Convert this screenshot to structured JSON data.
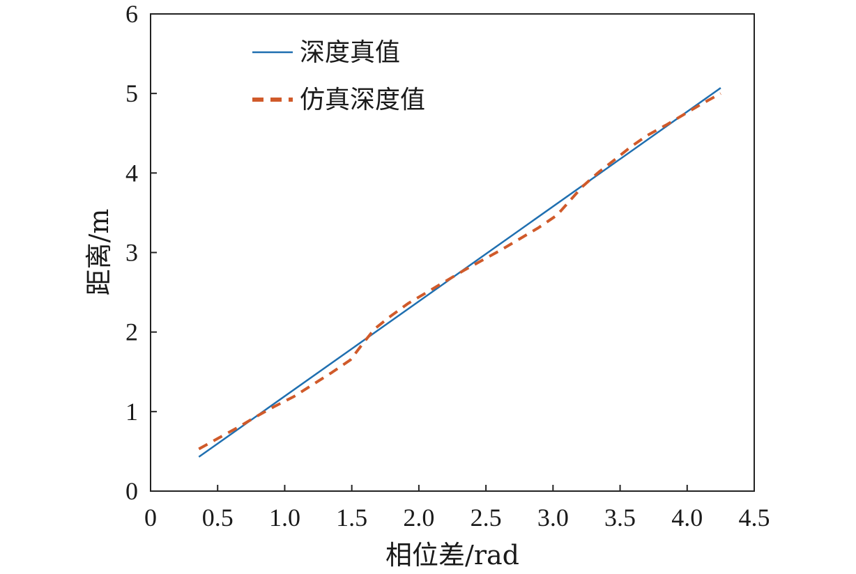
{
  "chart_data": {
    "type": "line",
    "xlabel": "相位差/rad",
    "ylabel": "距离/m",
    "xlim": [
      0,
      4.5
    ],
    "ylim": [
      0,
      6
    ],
    "x_ticks": [
      "0",
      "0.5",
      "1.0",
      "1.5",
      "2.0",
      "2.5",
      "3.0",
      "3.5",
      "4.0",
      "4.5"
    ],
    "y_ticks": [
      "0",
      "1",
      "2",
      "3",
      "4",
      "5",
      "6"
    ],
    "legend_position": "top-left",
    "series": [
      {
        "name": "深度真值",
        "style": "solid",
        "color": "#1f6fb0",
        "x": [
          0.36,
          4.25
        ],
        "y": [
          0.43,
          5.07
        ]
      },
      {
        "name": "仿真深度值",
        "style": "dashed",
        "color": "#d05a2a",
        "x": [
          0.36,
          0.51,
          0.65,
          0.79,
          0.93,
          1.07,
          1.21,
          1.35,
          1.49,
          1.58,
          1.67,
          1.79,
          1.92,
          2.06,
          2.19,
          2.33,
          2.47,
          2.61,
          2.75,
          2.89,
          3.03,
          3.12,
          3.22,
          3.34,
          3.47,
          3.58,
          3.7,
          3.84,
          3.97,
          4.11,
          4.25
        ],
        "y": [
          0.53,
          0.67,
          0.8,
          0.94,
          1.07,
          1.19,
          1.34,
          1.49,
          1.65,
          1.85,
          2.04,
          2.2,
          2.36,
          2.5,
          2.63,
          2.77,
          2.9,
          3.03,
          3.17,
          3.31,
          3.47,
          3.64,
          3.83,
          4.01,
          4.18,
          4.33,
          4.47,
          4.6,
          4.73,
          4.87,
          5.0
        ]
      }
    ]
  }
}
